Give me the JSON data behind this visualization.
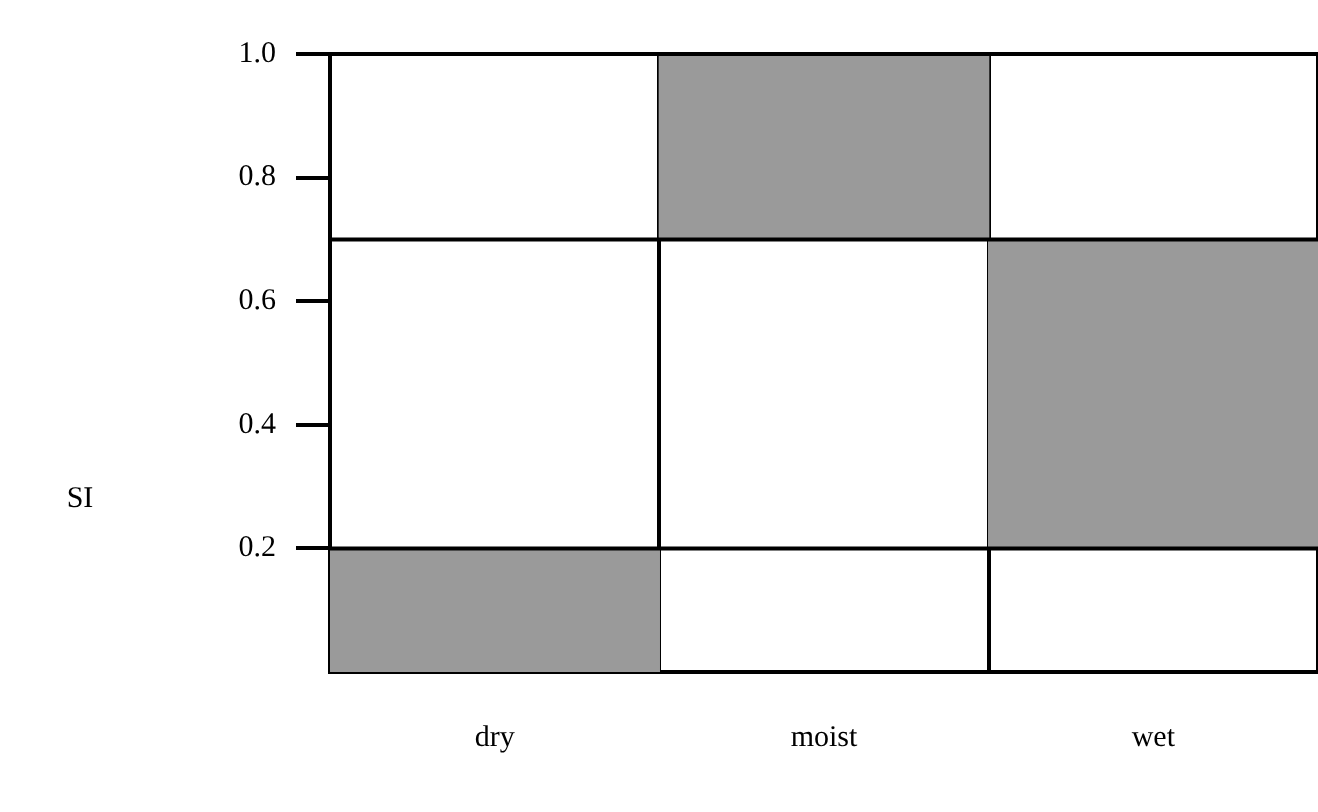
{
  "chart_data": {
    "type": "bar",
    "ylabel": "SI",
    "categories": [
      "dry",
      "moist",
      "wet"
    ],
    "values": [
      0.2,
      0.3,
      0.5
    ],
    "base": [
      0,
      0.7,
      0.2
    ],
    "color": "#9a9a9a",
    "ylim": [
      0,
      1.0
    ],
    "yticks": [
      {
        "value": 0.2,
        "label": "0.2"
      },
      {
        "value": 0.4,
        "label": "0.4"
      },
      {
        "value": 0.6,
        "label": "0.6"
      },
      {
        "value": 0.8,
        "label": "0.8"
      },
      {
        "value": 1.0,
        "label": "1.0"
      }
    ],
    "ref_lines": [
      {
        "axis": "y",
        "value": 0.2,
        "color": "#000000"
      },
      {
        "axis": "y",
        "value": 0.7,
        "color": "#000000"
      }
    ],
    "grid": "x",
    "legend": false
  }
}
